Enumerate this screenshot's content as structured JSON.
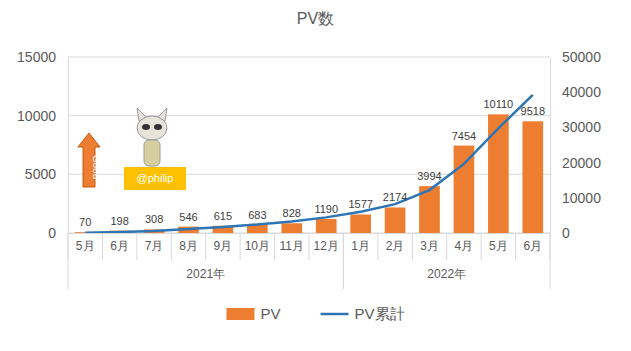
{
  "chart_data": {
    "type": "bar",
    "title": "PV数",
    "categories": [
      "5月",
      "6月",
      "7月",
      "8月",
      "9月",
      "10月",
      "11月",
      "12月",
      "1月",
      "2月",
      "3月",
      "4月",
      "5月",
      "6月"
    ],
    "category_groups": [
      {
        "label": "2021年",
        "count": 8
      },
      {
        "label": "2022年",
        "count": 6
      }
    ],
    "series": [
      {
        "name": "PV",
        "type": "bar",
        "color": "#ed7d31",
        "data_labels": true,
        "values": [
          70,
          198,
          308,
          546,
          615,
          683,
          828,
          1190,
          1577,
          2174,
          3994,
          7454,
          10110,
          9518
        ]
      },
      {
        "name": "PV累計",
        "type": "line",
        "axis": "y2",
        "color": "#2e75b6",
        "values": [
          70,
          268,
          576,
          1122,
          1737,
          2420,
          3248,
          4438,
          6015,
          8189,
          12183,
          19637,
          29747,
          39265
        ]
      }
    ],
    "ylim": [
      0,
      15000
    ],
    "yticks": [
      0,
      5000,
      10000,
      15000
    ],
    "y2lim": [
      0,
      50000
    ],
    "y2ticks": [
      0,
      10000,
      20000,
      30000,
      40000,
      50000
    ],
    "grid": true,
    "legend": "bottom",
    "annotations": [
      "Good",
      "@philip"
    ]
  }
}
